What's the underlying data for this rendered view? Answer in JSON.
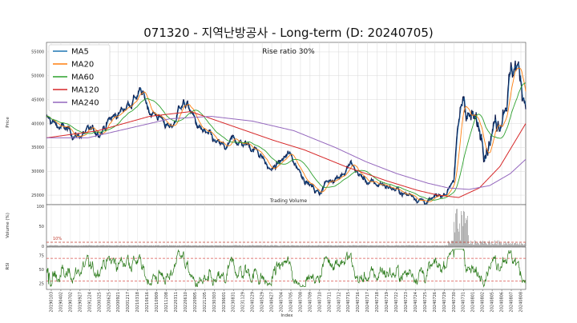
{
  "chart_data": {
    "type": "line",
    "title": "071320 - 지역난방공사 - Long-term (D: 20240705)",
    "annotation": "Rise ratio 30%",
    "volume_label": "Trading Volume",
    "xlabel": "Index",
    "grid": true,
    "legend_position": "top-left",
    "price_panel": {
      "ylabel": "Price",
      "ylim": [
        23000,
        57000
      ],
      "yticks": [
        25000,
        30000,
        35000,
        40000,
        45000,
        50000,
        55000
      ],
      "series": [
        {
          "name": "MA5",
          "color": "#1f77b4"
        },
        {
          "name": "MA20",
          "color": "#ff7f0e"
        },
        {
          "name": "MA60",
          "color": "#2ca02c"
        },
        {
          "name": "MA120",
          "color": "#d62728"
        },
        {
          "name": "MA240",
          "color": "#9467bd"
        }
      ],
      "close_color": "#0d1b4d",
      "close_keypoints": [
        [
          0,
          41000
        ],
        [
          2,
          39500
        ],
        [
          4,
          38500
        ],
        [
          6,
          37500
        ],
        [
          8,
          38000
        ],
        [
          10,
          38500
        ],
        [
          12,
          40500
        ],
        [
          14,
          42000
        ],
        [
          16,
          44500
        ],
        [
          18,
          46500
        ],
        [
          19,
          45000
        ],
        [
          20,
          43000
        ],
        [
          21,
          42000
        ],
        [
          22,
          41500
        ],
        [
          23,
          40500
        ],
        [
          24,
          38500
        ],
        [
          25,
          40500
        ],
        [
          26,
          44500
        ],
        [
          27,
          44000
        ],
        [
          28,
          42500
        ],
        [
          29,
          40000
        ],
        [
          30,
          38500
        ],
        [
          31,
          37500
        ],
        [
          32,
          36500
        ],
        [
          33,
          35500
        ],
        [
          34,
          35000
        ],
        [
          35,
          34500
        ],
        [
          36,
          36000
        ],
        [
          37,
          36500
        ],
        [
          38,
          35800
        ],
        [
          39,
          35500
        ],
        [
          40,
          35000
        ],
        [
          41,
          34500
        ],
        [
          42,
          33000
        ],
        [
          43,
          30500
        ],
        [
          44,
          30500
        ],
        [
          45,
          31500
        ],
        [
          46,
          32500
        ],
        [
          47,
          33500
        ],
        [
          48,
          32000
        ],
        [
          49,
          30500
        ],
        [
          50,
          29000
        ],
        [
          51,
          27500
        ],
        [
          52,
          26000
        ],
        [
          53,
          25500
        ],
        [
          54,
          27500
        ],
        [
          55,
          28000
        ],
        [
          56,
          29000
        ],
        [
          57,
          29500
        ],
        [
          58,
          30000
        ],
        [
          59,
          31500
        ],
        [
          60,
          30000
        ],
        [
          61,
          29000
        ],
        [
          62,
          28000
        ],
        [
          63,
          27500
        ],
        [
          64,
          27000
        ],
        [
          65,
          27500
        ],
        [
          66,
          27000
        ],
        [
          67,
          26500
        ],
        [
          68,
          26000
        ],
        [
          69,
          25500
        ],
        [
          70,
          25000
        ],
        [
          71,
          25200
        ],
        [
          72,
          24500
        ],
        [
          73,
          24000
        ],
        [
          74,
          23500
        ],
        [
          75,
          24000
        ],
        [
          76,
          24500
        ],
        [
          77,
          25000
        ],
        [
          78,
          26500
        ],
        [
          79,
          29000
        ],
        [
          80,
          39000
        ],
        [
          81,
          46000
        ],
        [
          82,
          42000
        ],
        [
          83,
          40000
        ],
        [
          84,
          38500
        ],
        [
          85,
          37000
        ],
        [
          86,
          38500
        ],
        [
          87,
          40000
        ],
        [
          88,
          42000
        ],
        [
          89,
          46000
        ],
        [
          90,
          50000
        ],
        [
          91,
          53000
        ],
        [
          92,
          49000
        ],
        [
          93,
          46000
        ]
      ],
      "ma120_keypoints": [
        [
          0,
          37000
        ],
        [
          10,
          38500
        ],
        [
          20,
          41500
        ],
        [
          28,
          42500
        ],
        [
          36,
          39500
        ],
        [
          44,
          36500
        ],
        [
          50,
          34500
        ],
        [
          58,
          31000
        ],
        [
          66,
          28000
        ],
        [
          72,
          26000
        ],
        [
          76,
          25000
        ],
        [
          80,
          24500
        ],
        [
          84,
          26500
        ],
        [
          88,
          31000
        ],
        [
          93,
          40000
        ]
      ],
      "ma240_keypoints": [
        [
          0,
          37000
        ],
        [
          8,
          37000
        ],
        [
          16,
          39000
        ],
        [
          24,
          41000
        ],
        [
          32,
          41500
        ],
        [
          40,
          40500
        ],
        [
          48,
          38500
        ],
        [
          56,
          35000
        ],
        [
          62,
          32000
        ],
        [
          68,
          29500
        ],
        [
          74,
          27500
        ],
        [
          78,
          26500
        ],
        [
          82,
          26200
        ],
        [
          86,
          27000
        ],
        [
          90,
          29500
        ],
        [
          93,
          32500
        ]
      ]
    },
    "volume_panel": {
      "ylabel": "Volume (%)",
      "yticks": [
        0,
        50,
        100
      ],
      "threshold_label": "10%",
      "threshold": 10
    },
    "rsi_panel": {
      "ylabel": "RSI",
      "yticks": [
        25,
        50,
        75
      ],
      "ylim": [
        15,
        90
      ],
      "overbought": 70,
      "oversold": 30,
      "color": "#2a7a1a"
    },
    "x_tick_labels": [
      "20190103",
      "20190402",
      "20190702",
      "20190927",
      "20191224",
      "20200325",
      "20200625",
      "20200921",
      "20201217",
      "20210318",
      "20210616",
      "20210909",
      "20211208",
      "20220311",
      "20220610",
      "20220905",
      "20221205",
      "20230303",
      "20230601",
      "20230831",
      "20231129",
      "20240229",
      "20240529",
      "20240627",
      "20240704",
      "20240705",
      "20240708",
      "20240709",
      "20240710",
      "20240711",
      "20240712",
      "20240715",
      "20240716",
      "20240717",
      "20240718",
      "20240719",
      "20240722",
      "20240723",
      "20240724",
      "20240725",
      "20240726",
      "20240729",
      "20240730",
      "20240731",
      "20240801",
      "20240802",
      "20240805",
      "20240806",
      "20240807",
      "20240808"
    ]
  }
}
